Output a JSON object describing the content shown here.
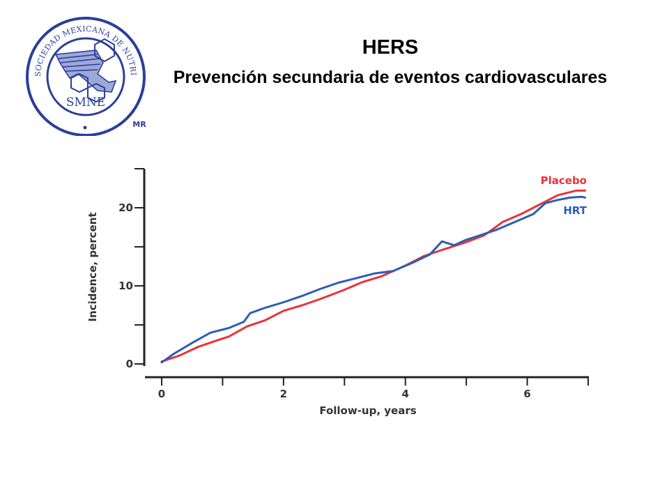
{
  "header": {
    "title": "HERS",
    "subtitle": "Prevención secundaria de eventos cardiovasculares"
  },
  "logo": {
    "ring_text": "SOCIEDAD MEXICANA DE NUTRICIÓN Y ENDOCRINOLOGÍA",
    "abbreviation": "SMNE",
    "mark": "MR",
    "color": "#2a3f9a"
  },
  "chart_data": {
    "type": "line",
    "title": "",
    "xlabel": "Follow-up, years",
    "ylabel": "Incidence, percent",
    "xlim": [
      0,
      7
    ],
    "ylim": [
      0,
      25
    ],
    "xticks": [
      0,
      2,
      4,
      6
    ],
    "xminor_ticks": [
      1,
      3,
      5
    ],
    "yticks": [
      0,
      10,
      20
    ],
    "yminor_ticks": [
      5,
      15,
      25
    ],
    "grid": false,
    "legend_position": "right, at line ends",
    "series": [
      {
        "name": "Placebo",
        "color": "#e8333a",
        "x": [
          0,
          0.3,
          0.6,
          0.9,
          1.1,
          1.4,
          1.7,
          2.0,
          2.3,
          2.6,
          3.0,
          3.3,
          3.6,
          4.0,
          4.3,
          4.6,
          5.0,
          5.3,
          5.6,
          5.9,
          6.2,
          6.5,
          6.8,
          6.95
        ],
        "y": [
          0.3,
          1.1,
          2.2,
          3.0,
          3.5,
          4.8,
          5.6,
          6.8,
          7.5,
          8.3,
          9.5,
          10.5,
          11.2,
          12.6,
          13.8,
          14.6,
          15.6,
          16.5,
          18.2,
          19.2,
          20.4,
          21.6,
          22.2,
          22.2
        ]
      },
      {
        "name": "HRT",
        "color": "#2c5db5",
        "x": [
          0,
          0.2,
          0.5,
          0.8,
          1.1,
          1.35,
          1.45,
          1.7,
          2.0,
          2.3,
          2.6,
          2.9,
          3.2,
          3.5,
          3.8,
          4.1,
          4.4,
          4.6,
          4.8,
          5.0,
          5.2,
          5.5,
          5.8,
          6.1,
          6.3,
          6.5,
          6.7,
          6.9,
          6.95
        ],
        "y": [
          0.2,
          1.3,
          2.7,
          4.0,
          4.6,
          5.4,
          6.5,
          7.2,
          7.9,
          8.7,
          9.6,
          10.4,
          11.0,
          11.6,
          11.9,
          12.9,
          14.0,
          15.7,
          15.2,
          15.9,
          16.4,
          17.2,
          18.2,
          19.2,
          20.6,
          21.0,
          21.3,
          21.4,
          21.3
        ]
      }
    ]
  }
}
